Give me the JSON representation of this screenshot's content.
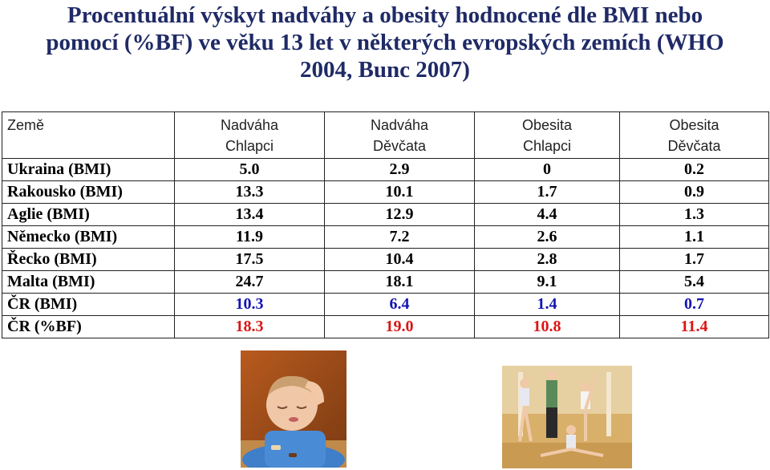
{
  "title": {
    "line1": "Procentuální výskyt nadváhy a obesity hodnocené dle BMI nebo",
    "line2": "pomocí (%BF) ve věku 13 let v některých evropských zemích (WHO",
    "line3": "2004, Bunc 2007)"
  },
  "table": {
    "headers": [
      {
        "l1": "Země",
        "l2": ""
      },
      {
        "l1": "Nadváha",
        "l2": "Chlapci"
      },
      {
        "l1": "Nadváha",
        "l2": "Děvčata"
      },
      {
        "l1": "Obesita",
        "l2": "Chlapci"
      },
      {
        "l1": "Obesita",
        "l2": "Děvčata"
      }
    ],
    "rows": [
      {
        "country": "Ukraina (BMI)",
        "values": [
          "5.0",
          "2.9",
          "0",
          "0.2"
        ]
      },
      {
        "country": "Rakousko (BMI)",
        "values": [
          "13.3",
          "10.1",
          "1.7",
          "0.9"
        ]
      },
      {
        "country": "Aglie (BMI)",
        "values": [
          "13.4",
          "12.9",
          "4.4",
          "1.3"
        ]
      },
      {
        "country": "Německo (BMI)",
        "values": [
          "11.9",
          "7.2",
          "2.6",
          "1.1"
        ]
      },
      {
        "country": "Řecko (BMI)",
        "values": [
          "17.5",
          "10.4",
          "2.8",
          "1.7"
        ]
      },
      {
        "country": "Malta (BMI)",
        "values": [
          "24.7",
          "18.1",
          "9.1",
          "5.4"
        ]
      },
      {
        "country": "ČR (BMI)",
        "values": [
          "10.3",
          "6.4",
          "1.4",
          "0.7"
        ]
      },
      {
        "country": "ČR (%BF)",
        "values": [
          "18.3",
          "19.0",
          "10.8",
          "11.4"
        ]
      }
    ]
  },
  "colors": {
    "title": "#1f2a66",
    "cr_bmi_values": "#1414b4",
    "cr_bf_values": "#dc1414"
  }
}
